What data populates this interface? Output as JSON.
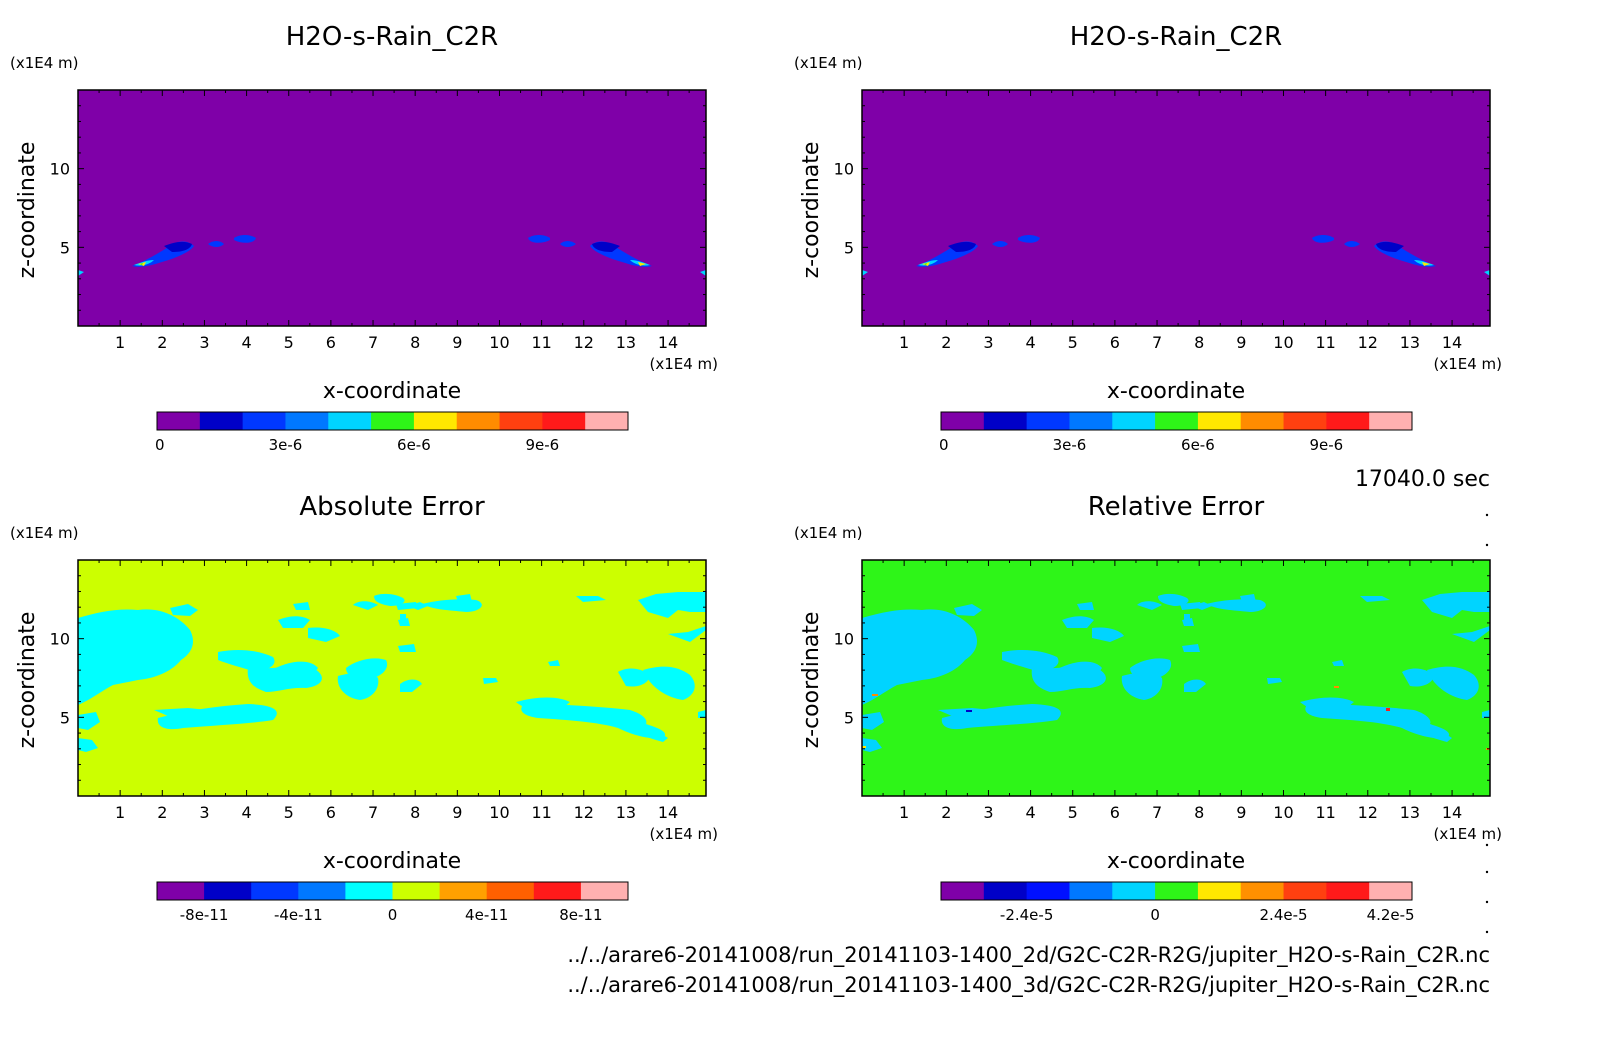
{
  "panels": [
    {
      "id": "top-left",
      "title": "H2O-s-Rain_C2R",
      "xlabel": "x-coordinate",
      "ylabel": "z-coordinate",
      "x_unit": "(x1E4 m)",
      "y_unit": "(x1E4 m)",
      "x_ticks": [
        "1",
        "2",
        "3",
        "4",
        "5",
        "6",
        "7",
        "8",
        "9",
        "10",
        "11",
        "12",
        "13",
        "14"
      ],
      "y_ticks": [
        "5",
        "10"
      ],
      "background_color": "#7f00a8",
      "colorbar": {
        "colors": [
          "#7f00a8",
          "#0000c8",
          "#0038ff",
          "#0078ff",
          "#00d4ff",
          "#2ef518",
          "#ffe800",
          "#ff8c00",
          "#ff4010",
          "#ff1a1a",
          "#ffb0b0"
        ],
        "labels": [
          "0",
          "3e-6",
          "6e-6",
          "9e-6"
        ]
      }
    },
    {
      "id": "top-right",
      "title": "H2O-s-Rain_C2R",
      "xlabel": "x-coordinate",
      "ylabel": "z-coordinate",
      "x_unit": "(x1E4 m)",
      "y_unit": "(x1E4 m)",
      "x_ticks": [
        "1",
        "2",
        "3",
        "4",
        "5",
        "6",
        "7",
        "8",
        "9",
        "10",
        "11",
        "12",
        "13",
        "14"
      ],
      "y_ticks": [
        "5",
        "10"
      ],
      "background_color": "#7f00a8",
      "colorbar": {
        "colors": [
          "#7f00a8",
          "#0000c8",
          "#0038ff",
          "#0078ff",
          "#00d4ff",
          "#2ef518",
          "#ffe800",
          "#ff8c00",
          "#ff4010",
          "#ff1a1a",
          "#ffb0b0"
        ],
        "labels": [
          "0",
          "3e-6",
          "6e-6",
          "9e-6"
        ]
      }
    },
    {
      "id": "bottom-left",
      "title": "Absolute Error",
      "xlabel": "x-coordinate",
      "ylabel": "z-coordinate",
      "x_unit": "(x1E4 m)",
      "y_unit": "(x1E4 m)",
      "x_ticks": [
        "1",
        "2",
        "3",
        "4",
        "5",
        "6",
        "7",
        "8",
        "9",
        "10",
        "11",
        "12",
        "13",
        "14"
      ],
      "y_ticks": [
        "5",
        "10"
      ],
      "background_color": "#ccff00",
      "colorbar": {
        "colors": [
          "#7f00a8",
          "#0000c8",
          "#0038ff",
          "#0078ff",
          "#00ffff",
          "#ccff00",
          "#ffa000",
          "#ff6000",
          "#ff1a1a",
          "#ffb0b0"
        ],
        "labels": [
          "-8e-11",
          "-4e-11",
          "0",
          "4e-11",
          "8e-11"
        ]
      }
    },
    {
      "id": "bottom-right",
      "title": "Relative Error",
      "xlabel": "x-coordinate",
      "ylabel": "z-coordinate",
      "x_unit": "(x1E4 m)",
      "y_unit": "(x1E4 m)",
      "x_ticks": [
        "1",
        "2",
        "3",
        "4",
        "5",
        "6",
        "7",
        "8",
        "9",
        "10",
        "11",
        "12",
        "13",
        "14"
      ],
      "y_ticks": [
        "5",
        "10"
      ],
      "background_color": "#2ef518",
      "colorbar": {
        "colors": [
          "#7f00a8",
          "#0000c8",
          "#0010ff",
          "#0078ff",
          "#00d4ff",
          "#2ef518",
          "#ffe800",
          "#ff9000",
          "#ff4010",
          "#ff1a1a",
          "#ffb0b0"
        ],
        "labels": [
          "-2.4e-5",
          "0",
          "2.4e-5",
          "4.2e-5"
        ]
      }
    }
  ],
  "time_label": "17040.0 sec",
  "footer": [
    "../../arare6-20141008/run_20141103-1400_2d/G2C-C2R-R2G/jupiter_H2O-s-Rain_C2R.nc",
    "../../arare6-20141008/run_20141103-1400_3d/G2C-C2R-R2G/jupiter_H2O-s-Rain_C2R.nc"
  ],
  "chart_data": [
    {
      "type": "heatmap",
      "title": "H2O-s-Rain_C2R",
      "xlabel": "x-coordinate",
      "ylabel": "z-coordinate",
      "x_unit": "(x1E4 m)",
      "y_unit": "(x1E4 m)",
      "xlim": [
        0,
        14.9
      ],
      "ylim": [
        0,
        15
      ],
      "levels": [
        "0",
        "3e-6",
        "6e-6",
        "9e-6"
      ],
      "features": [
        {
          "description_of_region": "rain band left",
          "x": [
            1.4,
            4.2
          ],
          "z": [
            3.8,
            5.5
          ],
          "max_value": "6e-6"
        },
        {
          "description_of_region": "rain band right",
          "x": [
            10.8,
            13.7
          ],
          "z": [
            3.8,
            5.5
          ],
          "max_value": "6e-6"
        }
      ]
    },
    {
      "type": "heatmap",
      "title": "H2O-s-Rain_C2R",
      "xlabel": "x-coordinate",
      "ylabel": "z-coordinate",
      "x_unit": "(x1E4 m)",
      "y_unit": "(x1E4 m)",
      "xlim": [
        0,
        14.9
      ],
      "ylim": [
        0,
        15
      ],
      "levels": [
        "0",
        "3e-6",
        "6e-6",
        "9e-6"
      ]
    },
    {
      "type": "heatmap",
      "title": "Absolute Error",
      "xlabel": "x-coordinate",
      "ylabel": "z-coordinate",
      "xlim": [
        0,
        14.9
      ],
      "ylim": [
        0,
        15
      ],
      "levels": [
        "-8e-11",
        "-4e-11",
        "0",
        "4e-11",
        "8e-11"
      ]
    },
    {
      "type": "heatmap",
      "title": "Relative Error",
      "xlabel": "x-coordinate",
      "ylabel": "z-coordinate",
      "xlim": [
        0,
        14.9
      ],
      "ylim": [
        0,
        15
      ],
      "levels": [
        "-2.4e-5",
        "0",
        "2.4e-5",
        "4.2e-5"
      ]
    }
  ]
}
